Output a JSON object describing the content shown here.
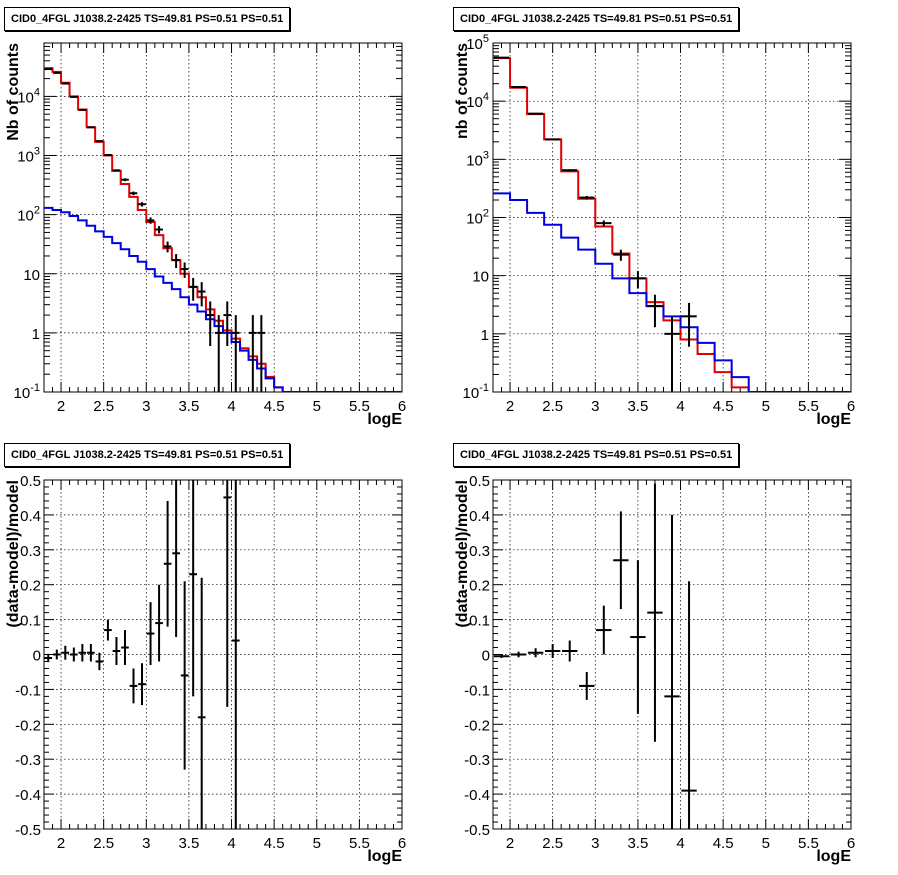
{
  "chart_data": [
    {
      "type": "line",
      "panel": "top-left",
      "title": "CID0_4FGL J1038.2-2425 TS=49.81 PS=0.51 PS=0.51",
      "xlabel": "logE",
      "ylabel": "Nb of counts",
      "xlim": [
        1.8,
        6
      ],
      "ylim": [
        0.1,
        80000
      ],
      "yscale": "log",
      "grid": true,
      "xticks": [
        "2",
        "2.5",
        "3",
        "3.5",
        "4",
        "4.5",
        "5",
        "5.5",
        "6"
      ],
      "yticks": [
        {
          "v": 0.1,
          "base": "10",
          "exp": "-1"
        },
        {
          "v": 1,
          "label": "1"
        },
        {
          "v": 10,
          "label": "10"
        },
        {
          "v": 100,
          "base": "10",
          "exp": "2"
        },
        {
          "v": 1000,
          "base": "10",
          "exp": "3"
        },
        {
          "v": 10000,
          "base": "10",
          "exp": "4"
        }
      ],
      "bin_edges": [
        1.8,
        1.9,
        2.0,
        2.1,
        2.2,
        2.3,
        2.4,
        2.5,
        2.6,
        2.7,
        2.8,
        2.9,
        3.0,
        3.1,
        3.2,
        3.3,
        3.4,
        3.5,
        3.6,
        3.7,
        3.8,
        3.9,
        4.0,
        4.1,
        4.2,
        4.3,
        4.4,
        4.5,
        4.6,
        4.7,
        4.8,
        4.9,
        5.0,
        5.1,
        5.2,
        5.3,
        5.4,
        5.5,
        5.6,
        5.7,
        5.8,
        5.9,
        6.0
      ],
      "series": [
        {
          "color": "#e00000",
          "kind": "step",
          "values": [
            30000,
            26000,
            17000,
            10000,
            6000,
            3000,
            1700,
            1000,
            550,
            330,
            200,
            120,
            75,
            45,
            27,
            17,
            10,
            6,
            4,
            2.5,
            1.6,
            1.1,
            0.8,
            0.55,
            0.4,
            0.3,
            0.18,
            0.12,
            0.1,
            0.1,
            0.1,
            0.1,
            0.1,
            0.1,
            0.1,
            0.1,
            0.1,
            0.1,
            0.1,
            0.1,
            0.1,
            0.1
          ]
        },
        {
          "color": "#0000e0",
          "kind": "step",
          "values": [
            130,
            120,
            110,
            95,
            80,
            65,
            52,
            42,
            33,
            26,
            20,
            16,
            12,
            9,
            7,
            5.5,
            4,
            3,
            2.3,
            1.7,
            1.3,
            1.0,
            0.7,
            0.5,
            0.35,
            0.25,
            0.17,
            0.12,
            0.1,
            0.1,
            0.1,
            0.1,
            0.1,
            0.1,
            0.1,
            0.1,
            0.1,
            0.1,
            0.1,
            0.1,
            0.1,
            0.1
          ]
        },
        {
          "color": "#000000",
          "kind": "points",
          "points": [
            [
              1.85,
              29000,
              200
            ],
            [
              1.95,
              25000,
              180
            ],
            [
              2.05,
              16500,
              150
            ],
            [
              2.15,
              9800,
              120
            ],
            [
              2.25,
              5900,
              90
            ],
            [
              2.35,
              3000,
              60
            ],
            [
              2.45,
              1750,
              45
            ],
            [
              2.55,
              1020,
              35
            ],
            [
              2.65,
              560,
              25
            ],
            [
              2.75,
              390,
              22
            ],
            [
              2.85,
              230,
              16
            ],
            [
              2.95,
              150,
              13
            ],
            [
              3.05,
              80,
              10
            ],
            [
              3.15,
              56,
              8
            ],
            [
              3.25,
              29,
              6
            ],
            [
              3.35,
              17,
              4.5
            ],
            [
              3.45,
              12,
              3.5
            ],
            [
              3.55,
              6,
              2.5
            ],
            [
              3.65,
              5,
              2.2
            ],
            [
              3.75,
              2,
              1.4
            ],
            [
              3.85,
              1,
              1
            ],
            [
              3.95,
              2,
              1.4
            ],
            [
              4.05,
              1,
              1
            ],
            [
              4.25,
              1,
              1
            ],
            [
              4.35,
              1,
              1
            ]
          ]
        }
      ]
    },
    {
      "type": "line",
      "panel": "top-right",
      "title": "CID0_4FGL J1038.2-2425 TS=49.81 PS=0.51 PS=0.51",
      "xlabel": "logE",
      "ylabel": "nb of counts",
      "xlim": [
        1.8,
        6
      ],
      "ylim": [
        0.1,
        100000
      ],
      "yscale": "log",
      "grid": true,
      "xticks": [
        "2",
        "2.5",
        "3",
        "3.5",
        "4",
        "4.5",
        "5",
        "5.5",
        "6"
      ],
      "yticks": [
        {
          "v": 0.1,
          "base": "10",
          "exp": "-1"
        },
        {
          "v": 1,
          "label": "1"
        },
        {
          "v": 10,
          "label": "10"
        },
        {
          "v": 100,
          "base": "10",
          "exp": "2"
        },
        {
          "v": 1000,
          "base": "10",
          "exp": "3"
        },
        {
          "v": 10000,
          "base": "10",
          "exp": "4"
        },
        {
          "v": 100000,
          "base": "10",
          "exp": "5"
        }
      ],
      "bin_edges": [
        1.8,
        2.0,
        2.2,
        2.4,
        2.6,
        2.8,
        3.0,
        3.2,
        3.4,
        3.6,
        3.8,
        4.0,
        4.2,
        4.4,
        4.6,
        4.8,
        5.0,
        5.2,
        5.4,
        5.6,
        5.8,
        6.0
      ],
      "series": [
        {
          "color": "#e00000",
          "kind": "step",
          "values": [
            55000,
            17000,
            6000,
            2200,
            620,
            210,
            70,
            24,
            9,
            3.5,
            1.7,
            0.8,
            0.45,
            0.22,
            0.12,
            0.1,
            0.1,
            0.1,
            0.1,
            0.1,
            0.1
          ]
        },
        {
          "color": "#0000e0",
          "kind": "step",
          "values": [
            260,
            200,
            120,
            75,
            45,
            28,
            16,
            9,
            5,
            3,
            2,
            1.3,
            0.7,
            0.35,
            0.18,
            0.1,
            0.1,
            0.1,
            0.1,
            0.1,
            0.1
          ]
        },
        {
          "color": "#000000",
          "kind": "points",
          "points": [
            [
              1.9,
              56000,
              240
            ],
            [
              2.1,
              17500,
              130
            ],
            [
              2.3,
              6100,
              80
            ],
            [
              2.5,
              2200,
              47
            ],
            [
              2.7,
              650,
              26
            ],
            [
              2.9,
              220,
              15
            ],
            [
              3.1,
              80,
              9
            ],
            [
              3.3,
              23,
              5
            ],
            [
              3.5,
              9,
              3
            ],
            [
              3.7,
              3,
              1.7
            ],
            [
              3.9,
              1,
              1
            ],
            [
              4.1,
              2,
              1.4
            ]
          ]
        }
      ]
    },
    {
      "type": "scatter",
      "panel": "bottom-left",
      "title": "CID0_4FGL J1038.2-2425 TS=49.81 PS=0.51 PS=0.51",
      "xlabel": "logE",
      "ylabel": "(data-model)/model",
      "xlim": [
        1.8,
        6
      ],
      "ylim": [
        -0.5,
        0.5
      ],
      "grid": true,
      "xticks": [
        "2",
        "2.5",
        "3",
        "3.5",
        "4",
        "4.5",
        "5",
        "5.5",
        "6"
      ],
      "yticks": [
        "-0.5",
        "-0.4",
        "-0.3",
        "-0.2",
        "-0.1",
        "0",
        "0.1",
        "0.2",
        "0.3",
        "0.4",
        "0.5"
      ],
      "bin_width": 0.1,
      "points": [
        [
          1.85,
          -0.01,
          0.012
        ],
        [
          1.95,
          0.0,
          0.014
        ],
        [
          2.05,
          0.005,
          0.02
        ],
        [
          2.15,
          0.0,
          0.02
        ],
        [
          2.25,
          0.005,
          0.025
        ],
        [
          2.35,
          0.005,
          0.025
        ],
        [
          2.45,
          -0.02,
          0.025
        ],
        [
          2.55,
          0.07,
          0.03
        ],
        [
          2.65,
          0.01,
          0.04
        ],
        [
          2.75,
          0.02,
          0.05
        ],
        [
          2.85,
          -0.09,
          0.05
        ],
        [
          2.95,
          -0.085,
          0.06
        ],
        [
          3.05,
          0.06,
          0.09
        ],
        [
          3.15,
          0.09,
          0.11
        ],
        [
          3.25,
          0.26,
          0.18
        ],
        [
          3.35,
          0.29,
          0.24
        ],
        [
          3.45,
          -0.06,
          0.27
        ],
        [
          3.55,
          0.23,
          0.35
        ],
        [
          3.65,
          -0.18,
          0.4
        ],
        [
          3.95,
          0.45,
          0.6
        ],
        [
          4.05,
          0.04,
          0.6
        ]
      ]
    },
    {
      "type": "scatter",
      "panel": "bottom-right",
      "title": "CID0_4FGL J1038.2-2425 TS=49.81 PS=0.51 PS=0.51",
      "xlabel": "logE",
      "ylabel": "(data-model)/model",
      "xlim": [
        1.8,
        6
      ],
      "ylim": [
        -0.5,
        0.5
      ],
      "grid": true,
      "xticks": [
        "2",
        "2.5",
        "3",
        "3.5",
        "4",
        "4.5",
        "5",
        "5.5",
        "6"
      ],
      "yticks": [
        "-0.5",
        "-0.4",
        "-0.3",
        "-0.2",
        "-0.1",
        "0",
        "0.1",
        "0.2",
        "0.3",
        "0.4",
        "0.5"
      ],
      "bin_width": 0.2,
      "points": [
        [
          1.9,
          -0.005,
          0.005
        ],
        [
          2.1,
          0.0,
          0.008
        ],
        [
          2.3,
          0.005,
          0.013
        ],
        [
          2.5,
          0.01,
          0.02
        ],
        [
          2.7,
          0.01,
          0.03
        ],
        [
          2.9,
          -0.09,
          0.04
        ],
        [
          3.1,
          0.07,
          0.07
        ],
        [
          3.3,
          0.27,
          0.14
        ],
        [
          3.5,
          0.05,
          0.22
        ],
        [
          3.7,
          0.12,
          0.37
        ],
        [
          3.9,
          -0.12,
          0.52
        ],
        [
          4.1,
          -0.39,
          0.6
        ]
      ]
    }
  ]
}
